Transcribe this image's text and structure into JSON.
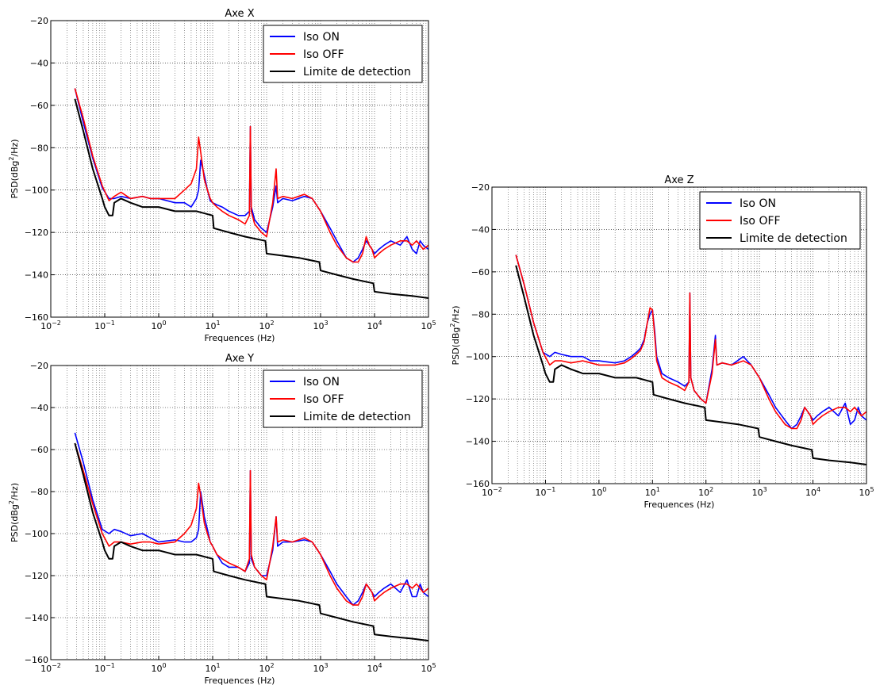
{
  "chart_data": [
    {
      "type": "line",
      "title": "Axe X",
      "xlabel": "Frequences (Hz)",
      "ylabel": "PSD(dBg²/Hz)",
      "xscale": "log",
      "xlim": [
        0.01,
        100000
      ],
      "ylim": [
        -160,
        -20
      ],
      "xticks": [
        "10⁻²",
        "10⁻¹",
        "10⁰",
        "10¹",
        "10²",
        "10³",
        "10⁴",
        "10⁵"
      ],
      "yticks": [
        "−20",
        "−40",
        "−60",
        "−80",
        "−100",
        "−120",
        "−140",
        "−160"
      ],
      "grid": true,
      "legend_position": "top-right",
      "series": [
        {
          "name": "Iso ON",
          "color": "#0000ff",
          "x": [
            0.028,
            0.04,
            0.06,
            0.09,
            0.12,
            0.15,
            0.2,
            0.3,
            0.5,
            0.7,
            1,
            2,
            3,
            4,
            5,
            5.5,
            6,
            7,
            8,
            9,
            10,
            12,
            15,
            20,
            30,
            40,
            48,
            50,
            52,
            60,
            80,
            100,
            130,
            150,
            160,
            200,
            300,
            500,
            700,
            1000,
            1500,
            2000,
            3000,
            4000,
            5000,
            6000,
            7000,
            8000,
            9000,
            10000,
            12000,
            15000,
            20000,
            30000,
            40000,
            50000,
            60000,
            70000,
            80000,
            100000
          ],
          "y": [
            -52,
            -68,
            -85,
            -99,
            -104,
            -104,
            -103,
            -104,
            -103,
            -104,
            -104,
            -106,
            -106,
            -108,
            -104,
            -100,
            -86,
            -93,
            -100,
            -105,
            -106,
            -107,
            -108,
            -110,
            -112,
            -112,
            -110,
            -70,
            -108,
            -114,
            -118,
            -120,
            -108,
            -98,
            -106,
            -104,
            -105,
            -103,
            -104,
            -110,
            -118,
            -124,
            -132,
            -134,
            -132,
            -128,
            -124,
            -126,
            -128,
            -130,
            -128,
            -126,
            -124,
            -126,
            -122,
            -128,
            -130,
            -124,
            -126,
            -128
          ]
        },
        {
          "name": "Iso OFF",
          "color": "#ff0000",
          "x": [
            0.028,
            0.04,
            0.06,
            0.09,
            0.12,
            0.15,
            0.2,
            0.3,
            0.5,
            0.7,
            1,
            2,
            3,
            4,
            5,
            5.5,
            6,
            7,
            8,
            9,
            10,
            12,
            15,
            20,
            30,
            40,
            48,
            50,
            52,
            60,
            80,
            100,
            130,
            150,
            160,
            200,
            300,
            500,
            700,
            1000,
            1500,
            2000,
            3000,
            4000,
            5000,
            6000,
            7000,
            8000,
            9000,
            10000,
            12000,
            15000,
            20000,
            30000,
            40000,
            50000,
            60000,
            70000,
            80000,
            100000
          ],
          "y": [
            -52,
            -66,
            -84,
            -98,
            -105,
            -103,
            -101,
            -104,
            -103,
            -104,
            -104,
            -104,
            -100,
            -97,
            -90,
            -75,
            -82,
            -95,
            -100,
            -104,
            -106,
            -108,
            -110,
            -112,
            -114,
            -116,
            -112,
            -70,
            -110,
            -116,
            -120,
            -122,
            -106,
            -90,
            -104,
            -103,
            -104,
            -102,
            -104,
            -110,
            -120,
            -126,
            -132,
            -134,
            -134,
            -130,
            -122,
            -126,
            -128,
            -132,
            -130,
            -128,
            -126,
            -124,
            -124,
            -126,
            -124,
            -126,
            -128,
            -126
          ]
        },
        {
          "name": "Limite de detection",
          "color": "#000000",
          "x": [
            0.028,
            0.04,
            0.06,
            0.09,
            0.1,
            0.12,
            0.14,
            0.15,
            0.2,
            0.3,
            0.5,
            1,
            2,
            5,
            10,
            10.5,
            20,
            40,
            95,
            100,
            200,
            400,
            950,
            1000,
            2000,
            4000,
            9500,
            10000,
            20000,
            50000,
            100000
          ],
          "y": [
            -57,
            -72,
            -90,
            -104,
            -108,
            -112,
            -112,
            -106,
            -104,
            -106,
            -108,
            -108,
            -110,
            -110,
            -112,
            -118,
            -120,
            -122,
            -124,
            -130,
            -131,
            -132,
            -134,
            -138,
            -140,
            -142,
            -144,
            -148,
            -149,
            -150,
            -151
          ]
        }
      ]
    },
    {
      "type": "line",
      "title": "Axe Y",
      "xlabel": "Frequences (Hz)",
      "ylabel": "PSD(dBg²/Hz)",
      "xscale": "log",
      "xlim": [
        0.01,
        100000
      ],
      "ylim": [
        -160,
        -20
      ],
      "xticks": [
        "10⁻²",
        "10⁻¹",
        "10⁰",
        "10¹",
        "10²",
        "10³",
        "10⁴",
        "10⁵"
      ],
      "yticks": [
        "−20",
        "−40",
        "−60",
        "−80",
        "−100",
        "−120",
        "−140",
        "−160"
      ],
      "grid": true,
      "legend_position": "top-right",
      "series": [
        {
          "name": "Iso ON",
          "color": "#0000ff",
          "x": [
            0.028,
            0.04,
            0.06,
            0.09,
            0.12,
            0.15,
            0.2,
            0.3,
            0.5,
            0.7,
            1,
            2,
            3,
            4,
            5,
            5.5,
            6,
            7,
            8,
            9,
            10,
            12,
            15,
            20,
            30,
            40,
            48,
            50,
            52,
            60,
            80,
            100,
            130,
            150,
            160,
            200,
            300,
            500,
            700,
            1000,
            1500,
            2000,
            3000,
            4000,
            5000,
            6000,
            7000,
            8000,
            9000,
            10000,
            12000,
            15000,
            20000,
            30000,
            40000,
            50000,
            60000,
            70000,
            80000,
            100000
          ],
          "y": [
            -52,
            -66,
            -84,
            -98,
            -100,
            -98,
            -99,
            -101,
            -100,
            -102,
            -104,
            -103,
            -104,
            -104,
            -102,
            -98,
            -80,
            -92,
            -98,
            -104,
            -106,
            -110,
            -114,
            -116,
            -116,
            -118,
            -114,
            -70,
            -112,
            -116,
            -120,
            -120,
            -108,
            -92,
            -106,
            -104,
            -104,
            -103,
            -104,
            -110,
            -118,
            -124,
            -130,
            -134,
            -132,
            -128,
            -124,
            -126,
            -128,
            -130,
            -128,
            -126,
            -124,
            -128,
            -122,
            -130,
            -130,
            -124,
            -128,
            -130
          ]
        },
        {
          "name": "Iso OFF",
          "color": "#ff0000",
          "x": [
            0.028,
            0.04,
            0.06,
            0.09,
            0.12,
            0.15,
            0.2,
            0.3,
            0.5,
            0.7,
            1,
            2,
            3,
            4,
            5,
            5.5,
            6,
            7,
            8,
            9,
            10,
            12,
            15,
            20,
            30,
            40,
            48,
            50,
            52,
            60,
            80,
            100,
            130,
            150,
            160,
            200,
            300,
            500,
            700,
            1000,
            1500,
            2000,
            3000,
            4000,
            5000,
            6000,
            7000,
            8000,
            9000,
            10000,
            12000,
            15000,
            20000,
            30000,
            40000,
            50000,
            60000,
            70000,
            80000,
            100000
          ],
          "y": [
            -57,
            -70,
            -86,
            -100,
            -106,
            -104,
            -104,
            -105,
            -104,
            -104,
            -105,
            -104,
            -100,
            -96,
            -88,
            -76,
            -82,
            -95,
            -100,
            -104,
            -106,
            -110,
            -112,
            -114,
            -116,
            -118,
            -112,
            -70,
            -110,
            -116,
            -120,
            -122,
            -106,
            -92,
            -104,
            -103,
            -104,
            -102,
            -104,
            -110,
            -120,
            -126,
            -132,
            -134,
            -134,
            -130,
            -124,
            -126,
            -128,
            -132,
            -130,
            -128,
            -126,
            -124,
            -124,
            -126,
            -124,
            -126,
            -128,
            -126
          ]
        },
        {
          "name": "Limite de detection",
          "color": "#000000",
          "x": [
            0.028,
            0.04,
            0.06,
            0.09,
            0.1,
            0.12,
            0.14,
            0.15,
            0.2,
            0.3,
            0.5,
            1,
            2,
            5,
            10,
            10.5,
            20,
            40,
            95,
            100,
            200,
            400,
            950,
            1000,
            2000,
            4000,
            9500,
            10000,
            20000,
            50000,
            100000
          ],
          "y": [
            -57,
            -72,
            -90,
            -104,
            -108,
            -112,
            -112,
            -106,
            -104,
            -106,
            -108,
            -108,
            -110,
            -110,
            -112,
            -118,
            -120,
            -122,
            -124,
            -130,
            -131,
            -132,
            -134,
            -138,
            -140,
            -142,
            -144,
            -148,
            -149,
            -150,
            -151
          ]
        }
      ]
    },
    {
      "type": "line",
      "title": "Axe Z",
      "xlabel": "Frequences (Hz)",
      "ylabel": "PSD(dBg²/Hz)",
      "xscale": "log",
      "xlim": [
        0.01,
        100000
      ],
      "ylim": [
        -160,
        -20
      ],
      "xticks": [
        "10⁻²",
        "10⁻¹",
        "10⁰",
        "10¹",
        "10²",
        "10³",
        "10⁴",
        "10⁵"
      ],
      "yticks": [
        "−20",
        "−40",
        "−60",
        "−80",
        "−100",
        "−120",
        "−140",
        "−160"
      ],
      "grid": true,
      "legend_position": "top-right",
      "series": [
        {
          "name": "Iso ON",
          "color": "#0000ff",
          "x": [
            0.028,
            0.04,
            0.06,
            0.09,
            0.12,
            0.15,
            0.2,
            0.3,
            0.5,
            0.7,
            1,
            2,
            3,
            4,
            5,
            6,
            7,
            8,
            9,
            10,
            11,
            12,
            15,
            20,
            30,
            40,
            48,
            50,
            52,
            60,
            80,
            100,
            130,
            150,
            160,
            200,
            300,
            500,
            700,
            1000,
            1500,
            2000,
            3000,
            4000,
            5000,
            6000,
            7000,
            8000,
            9000,
            10000,
            12000,
            15000,
            20000,
            30000,
            40000,
            50000,
            60000,
            70000,
            80000,
            100000
          ],
          "y": [
            -52,
            -66,
            -84,
            -98,
            -100,
            -98,
            -99,
            -100,
            -100,
            -102,
            -102,
            -103,
            -102,
            -100,
            -98,
            -96,
            -92,
            -84,
            -80,
            -78,
            -88,
            -100,
            -108,
            -110,
            -112,
            -114,
            -112,
            -70,
            -110,
            -116,
            -120,
            -122,
            -106,
            -90,
            -104,
            -103,
            -104,
            -100,
            -104,
            -110,
            -118,
            -124,
            -130,
            -134,
            -132,
            -128,
            -124,
            -126,
            -128,
            -130,
            -128,
            -126,
            -124,
            -128,
            -122,
            -132,
            -130,
            -124,
            -128,
            -130
          ]
        },
        {
          "name": "Iso OFF",
          "color": "#ff0000",
          "x": [
            0.028,
            0.04,
            0.06,
            0.09,
            0.12,
            0.15,
            0.2,
            0.3,
            0.5,
            0.7,
            1,
            2,
            3,
            4,
            5,
            6,
            7,
            8,
            9,
            10,
            11,
            12,
            15,
            20,
            30,
            40,
            48,
            50,
            52,
            60,
            80,
            100,
            130,
            150,
            160,
            200,
            300,
            500,
            700,
            1000,
            1500,
            2000,
            3000,
            4000,
            5000,
            6000,
            7000,
            8000,
            9000,
            10000,
            12000,
            15000,
            20000,
            30000,
            40000,
            50000,
            60000,
            70000,
            80000,
            100000
          ],
          "y": [
            -52,
            -66,
            -84,
            -98,
            -104,
            -102,
            -102,
            -103,
            -102,
            -103,
            -104,
            -104,
            -103,
            -101,
            -99,
            -97,
            -93,
            -84,
            -77,
            -78,
            -90,
            -102,
            -110,
            -112,
            -114,
            -116,
            -112,
            -70,
            -110,
            -116,
            -120,
            -122,
            -108,
            -92,
            -104,
            -103,
            -104,
            -102,
            -104,
            -110,
            -120,
            -126,
            -132,
            -134,
            -134,
            -130,
            -124,
            -126,
            -128,
            -132,
            -130,
            -128,
            -126,
            -124,
            -124,
            -126,
            -124,
            -126,
            -128,
            -126
          ]
        },
        {
          "name": "Limite de detection",
          "color": "#000000",
          "x": [
            0.028,
            0.04,
            0.06,
            0.09,
            0.1,
            0.12,
            0.14,
            0.15,
            0.2,
            0.3,
            0.5,
            1,
            2,
            5,
            10,
            10.5,
            20,
            40,
            95,
            100,
            200,
            400,
            950,
            1000,
            2000,
            4000,
            9500,
            10000,
            20000,
            50000,
            100000
          ],
          "y": [
            -57,
            -72,
            -90,
            -104,
            -108,
            -112,
            -112,
            -106,
            -104,
            -106,
            -108,
            -108,
            -110,
            -110,
            -112,
            -118,
            -120,
            -122,
            -124,
            -130,
            -131,
            -132,
            -134,
            -138,
            -140,
            -142,
            -144,
            -148,
            -149,
            -150,
            -151
          ]
        }
      ]
    }
  ]
}
